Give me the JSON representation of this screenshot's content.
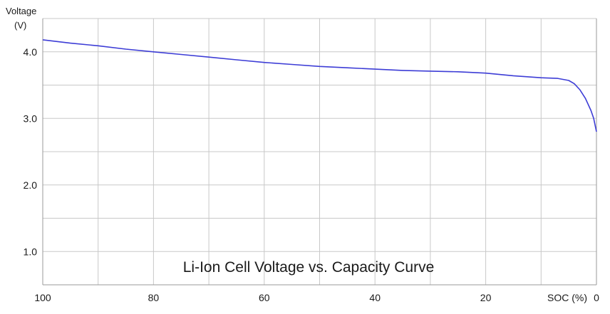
{
  "chart_data": {
    "type": "line",
    "title": "Li-Ion Cell Voltage vs. Capacity Curve",
    "ylabel_line1": "Voltage",
    "ylabel_line2": "(V)",
    "xlabel": "SOC (%)",
    "x_ticks": [
      "100",
      "80",
      "60",
      "40",
      "20",
      "0"
    ],
    "y_ticks": [
      "4.0",
      "3.0",
      "2.0",
      "1.0"
    ],
    "xlim": [
      100,
      0
    ],
    "ylim": [
      0.5,
      4.5
    ],
    "grid": true,
    "line_color": "#3d3dd6",
    "series": [
      {
        "x": [
          100,
          95,
          90,
          85,
          80,
          75,
          70,
          65,
          60,
          55,
          50,
          45,
          40,
          35,
          30,
          25,
          20,
          15,
          10,
          7,
          5,
          4,
          3,
          2,
          1,
          0.5,
          0
        ],
        "y": [
          4.18,
          4.13,
          4.09,
          4.04,
          4.0,
          3.96,
          3.92,
          3.88,
          3.84,
          3.81,
          3.78,
          3.76,
          3.74,
          3.72,
          3.71,
          3.7,
          3.68,
          3.64,
          3.61,
          3.6,
          3.57,
          3.52,
          3.43,
          3.3,
          3.12,
          3.0,
          2.8
        ]
      }
    ]
  }
}
